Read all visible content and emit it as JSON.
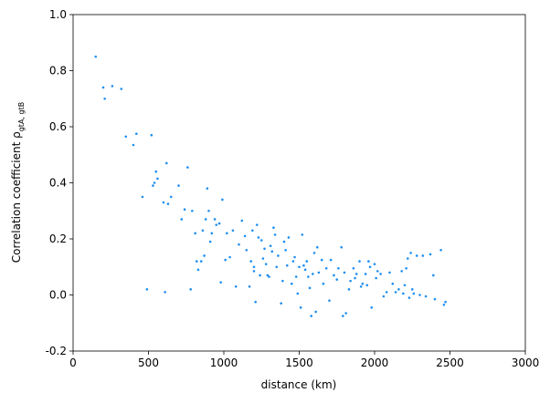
{
  "chart_data": {
    "type": "scatter",
    "xlabel": "distance (km)",
    "ylabel": "Correlation coefficient ρ",
    "ylabel_subscript": "gtA, gtB",
    "xlim": [
      0,
      3000
    ],
    "xticks": [
      0,
      500,
      1000,
      1500,
      2000,
      2500,
      3000
    ],
    "ylim": [
      -0.2,
      1.0
    ],
    "yticks": [
      -0.2,
      0.0,
      0.2,
      0.4,
      0.6,
      0.8,
      1.0
    ],
    "grid": false,
    "series": [
      {
        "color": "#1f8ff0",
        "x": [
          150,
          200,
          210,
          260,
          320,
          350,
          400,
          420,
          460,
          490,
          520,
          530,
          540,
          550,
          560,
          600,
          610,
          620,
          630,
          650,
          700,
          720,
          740,
          760,
          780,
          790,
          810,
          820,
          830,
          850,
          860,
          870,
          880,
          890,
          900,
          910,
          920,
          940,
          950,
          970,
          980,
          990,
          1010,
          1020,
          1040,
          1060,
          1080,
          1100,
          1120,
          1140,
          1150,
          1170,
          1180,
          1190,
          1200,
          1200,
          1210,
          1220,
          1230,
          1240,
          1250,
          1260,
          1270,
          1280,
          1290,
          1300,
          1310,
          1320,
          1330,
          1340,
          1350,
          1360,
          1380,
          1390,
          1400,
          1410,
          1420,
          1430,
          1450,
          1460,
          1470,
          1480,
          1490,
          1500,
          1510,
          1520,
          1530,
          1540,
          1550,
          1560,
          1570,
          1580,
          1590,
          1600,
          1610,
          1620,
          1630,
          1650,
          1660,
          1680,
          1700,
          1710,
          1730,
          1750,
          1760,
          1780,
          1790,
          1800,
          1810,
          1830,
          1840,
          1860,
          1870,
          1880,
          1900,
          1910,
          1920,
          1940,
          1950,
          1960,
          1970,
          1980,
          2000,
          2010,
          2020,
          2040,
          2060,
          2080,
          2100,
          2120,
          2140,
          2160,
          2180,
          2190,
          2200,
          2210,
          2220,
          2230,
          2240,
          2250,
          2260,
          2280,
          2300,
          2320,
          2340,
          2370,
          2390,
          2400,
          2440,
          2460,
          2470
        ],
        "values": [
          0.85,
          0.74,
          0.7,
          0.745,
          0.735,
          0.565,
          0.535,
          0.575,
          0.35,
          0.02,
          0.57,
          0.39,
          0.4,
          0.44,
          0.415,
          0.33,
          0.01,
          0.47,
          0.325,
          0.35,
          0.39,
          0.27,
          0.305,
          0.455,
          0.02,
          0.3,
          0.22,
          0.12,
          0.09,
          0.12,
          0.23,
          0.14,
          0.27,
          0.38,
          0.3,
          0.19,
          0.22,
          0.27,
          0.25,
          0.255,
          0.045,
          0.34,
          0.125,
          0.22,
          0.135,
          0.23,
          0.03,
          0.18,
          0.265,
          0.21,
          0.16,
          0.03,
          0.12,
          0.23,
          0.1,
          0.085,
          -0.025,
          0.25,
          0.205,
          0.07,
          0.195,
          0.13,
          0.165,
          0.11,
          0.07,
          0.065,
          0.175,
          0.155,
          0.24,
          0.215,
          0.1,
          0.14,
          -0.03,
          0.05,
          0.19,
          0.16,
          0.105,
          0.205,
          0.04,
          0.12,
          0.135,
          0.065,
          0.005,
          0.1,
          -0.045,
          0.215,
          0.105,
          0.09,
          0.12,
          0.065,
          0.025,
          -0.075,
          0.075,
          0.15,
          -0.06,
          0.17,
          0.08,
          0.125,
          0.04,
          0.095,
          -0.02,
          0.125,
          0.07,
          0.055,
          0.095,
          0.17,
          -0.075,
          0.08,
          -0.065,
          0.02,
          0.05,
          0.095,
          0.06,
          0.075,
          0.12,
          0.03,
          0.04,
          0.075,
          0.035,
          0.12,
          0.1,
          -0.045,
          0.11,
          0.06,
          0.085,
          0.075,
          -0.005,
          0.01,
          0.08,
          0.04,
          0.01,
          0.02,
          0.085,
          0.005,
          0.035,
          0.095,
          0.13,
          -0.01,
          0.15,
          0.02,
          0.005,
          0.14,
          0.0,
          0.14,
          -0.005,
          0.145,
          0.07,
          -0.015,
          0.16,
          -0.035,
          -0.025
        ]
      }
    ]
  }
}
